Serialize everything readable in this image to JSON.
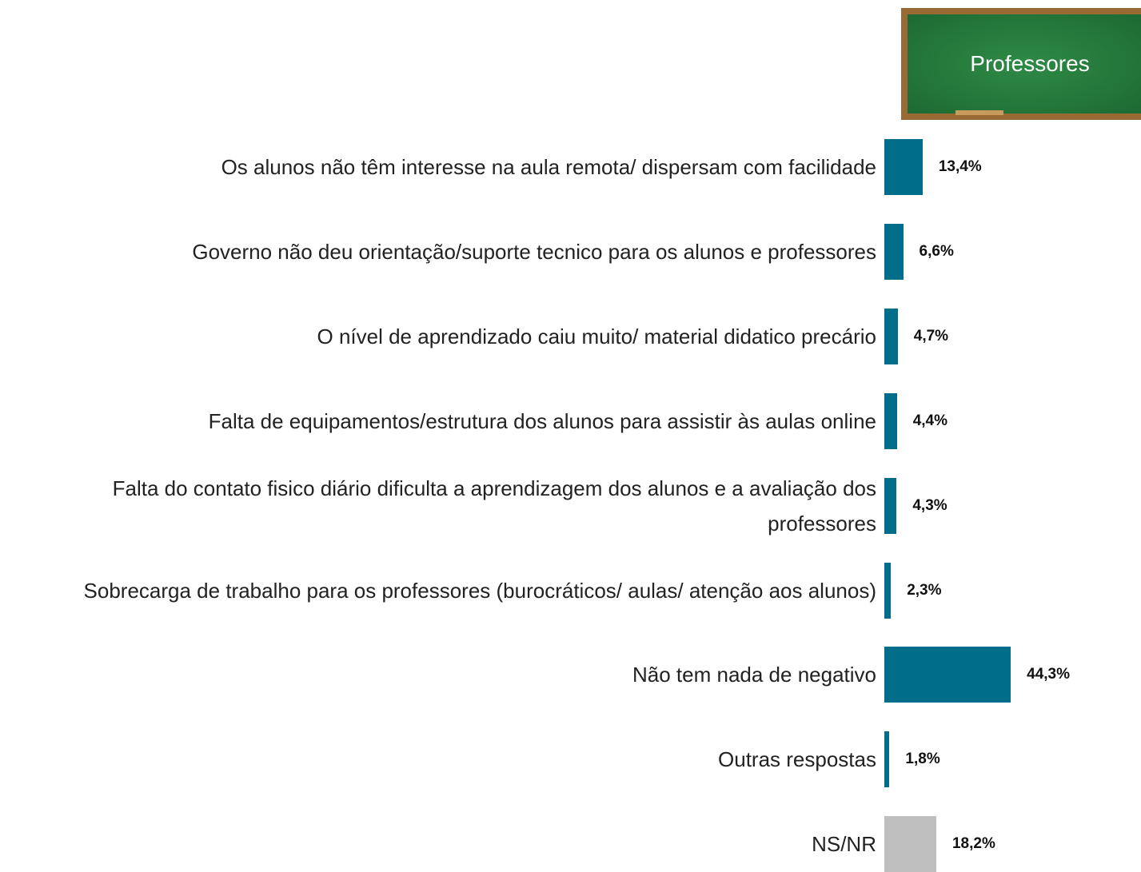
{
  "chart_data": {
    "type": "bar",
    "orientation": "horizontal",
    "title": "Professores",
    "categories": [
      "Os alunos não têm interesse na aula remota/ dispersam com facilidade",
      "Governo não deu orientação/suporte tecnico para os alunos e professores",
      "O nível de aprendizado caiu muito/ material didatico precário",
      "Falta de equipamentos/estrutura dos alunos para assistir às aulas online",
      "Falta do contato fisico diário dificulta a aprendizagem dos alunos e a avaliação dos professores",
      "Sobrecarga de trabalho para os professores (burocráticos/ aulas/ atenção aos alunos)",
      "Não tem nada de negativo",
      "Outras respostas",
      "NS/NR"
    ],
    "values": [
      13.4,
      6.6,
      4.7,
      4.4,
      4.3,
      2.3,
      44.3,
      1.8,
      18.2
    ],
    "value_labels": [
      "13,4%",
      "6,6%",
      "4,7%",
      "4,4%",
      "4,3%",
      "2,3%",
      "44,3%",
      "1,8%",
      "18,2%"
    ],
    "colors": [
      "#006d8a",
      "#006d8a",
      "#006d8a",
      "#006d8a",
      "#006d8a",
      "#006d8a",
      "#006d8a",
      "#006d8a",
      "#bfbfbf"
    ]
  }
}
